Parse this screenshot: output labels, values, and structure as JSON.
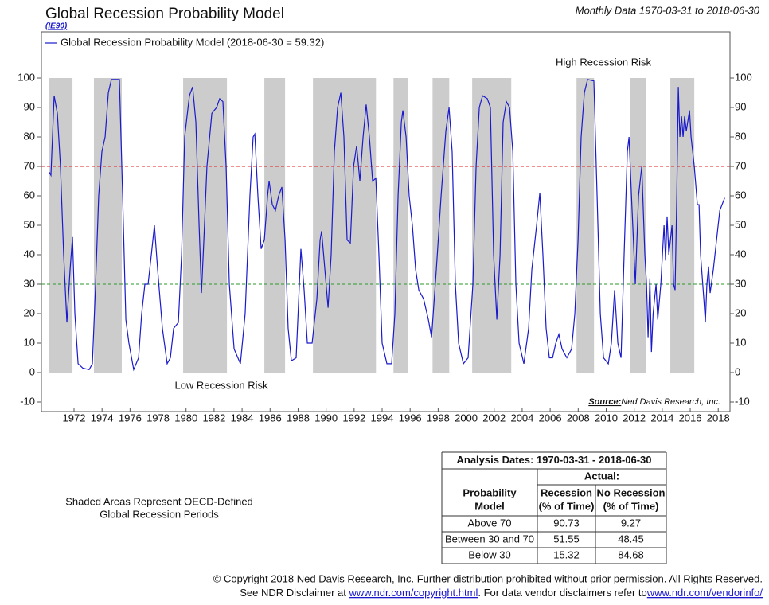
{
  "header": {
    "title": "Global Recession Probability Model",
    "code": "(IE90)",
    "date_range": "Monthly Data 1970-03-31 to 2018-06-30"
  },
  "chart_data": {
    "type": "line",
    "x": [
      1970.24,
      1970.35,
      1970.58,
      1970.81,
      1971.03,
      1971.26,
      1971.49,
      1971.72,
      1971.89,
      1972.06,
      1972.29,
      1972.63,
      1973.08,
      1973.31,
      1973.54,
      1973.76,
      1973.99,
      1974.22,
      1974.45,
      1974.67,
      1975.24,
      1975.47,
      1975.7,
      1975.92,
      1976.26,
      1976.61,
      1976.83,
      1977.06,
      1977.29,
      1977.52,
      1977.74,
      1977.97,
      1978.31,
      1978.65,
      1978.88,
      1979.11,
      1979.45,
      1979.68,
      1979.9,
      1980.24,
      1980.47,
      1980.7,
      1980.93,
      1981.1,
      1981.27,
      1981.49,
      1981.84,
      1982.18,
      1982.4,
      1982.63,
      1982.86,
      1983.09,
      1983.43,
      1983.88,
      1984.22,
      1984.56,
      1984.79,
      1984.91,
      1985.13,
      1985.36,
      1985.59,
      1985.82,
      1985.93,
      1986.16,
      1986.38,
      1986.61,
      1986.84,
      1987.07,
      1987.29,
      1987.52,
      1987.86,
      1988.09,
      1988.2,
      1988.43,
      1988.66,
      1989.0,
      1989.34,
      1989.57,
      1989.68,
      1989.91,
      1990.14,
      1990.36,
      1990.59,
      1990.82,
      1991.05,
      1991.27,
      1991.5,
      1991.73,
      1991.96,
      1992.18,
      1992.41,
      1992.64,
      1992.86,
      1993.09,
      1993.32,
      1993.55,
      1993.77,
      1994.0,
      1994.34,
      1994.68,
      1994.91,
      1995.14,
      1995.37,
      1995.48,
      1995.71,
      1995.93,
      1996.16,
      1996.39,
      1996.62,
      1996.96,
      1997.3,
      1997.53,
      1997.87,
      1998.21,
      1998.55,
      1998.78,
      1999.0,
      1999.23,
      1999.46,
      1999.8,
      2000.14,
      2000.48,
      2000.71,
      2000.94,
      2001.17,
      2001.51,
      2001.73,
      2001.96,
      2002.19,
      2002.42,
      2002.64,
      2002.87,
      2003.1,
      2003.33,
      2003.55,
      2003.78,
      2004.12,
      2004.46,
      2004.69,
      2005.03,
      2005.26,
      2005.48,
      2005.71,
      2005.94,
      2006.17,
      2006.4,
      2006.62,
      2006.85,
      2007.19,
      2007.53,
      2007.76,
      2007.99,
      2008.21,
      2008.44,
      2008.67,
      2009.12,
      2009.35,
      2009.58,
      2009.81,
      2010.15,
      2010.37,
      2010.6,
      2010.83,
      2011.06,
      2011.28,
      2011.51,
      2011.63,
      2011.85,
      2012.08,
      2012.31,
      2012.54,
      2012.76,
      2012.88,
      2012.99,
      2013.12,
      2013.23,
      2013.35,
      2013.56,
      2013.68,
      2013.9,
      2014.13,
      2014.24,
      2014.35,
      2014.47,
      2014.7,
      2014.81,
      2014.92,
      2015.04,
      2015.15,
      2015.26,
      2015.38,
      2015.49,
      2015.6,
      2015.72,
      2015.95,
      2016.06,
      2016.29,
      2016.51,
      2016.63,
      2016.74,
      2016.97,
      2017.08,
      2017.19,
      2017.31,
      2017.42,
      2017.65,
      2017.88,
      2018.11,
      2018.46
    ],
    "series": [
      {
        "name": "Global Recession Probability Model (2018-06-30 = 59.32)",
        "color": "#1a1acc",
        "values": [
          68,
          67,
          94,
          88,
          70,
          40,
          17,
          35,
          46,
          20,
          3,
          1.5,
          1,
          3,
          30,
          60,
          75,
          80,
          95,
          99.5,
          99.5,
          60,
          18,
          10,
          1,
          5,
          20,
          30,
          30,
          40,
          50,
          35,
          15,
          3,
          5,
          15,
          17,
          40,
          80,
          94,
          97,
          85,
          50,
          27,
          45,
          70,
          88,
          90,
          93,
          92,
          70,
          30,
          8,
          3,
          20,
          60,
          80,
          81,
          60,
          42,
          45,
          60,
          65,
          57,
          55,
          60,
          63,
          45,
          15,
          4,
          5,
          30,
          42,
          28,
          10,
          10,
          25,
          45,
          48,
          35,
          22,
          40,
          75,
          90,
          95,
          80,
          45,
          44,
          70,
          77,
          65,
          80,
          91,
          80,
          65,
          66,
          40,
          10,
          3,
          3,
          20,
          60,
          85,
          89,
          80,
          60,
          50,
          35,
          28,
          25,
          18,
          12,
          35,
          60,
          82,
          90,
          75,
          30,
          10,
          3,
          5,
          30,
          70,
          90,
          94,
          93,
          90,
          40,
          18,
          40,
          85,
          92,
          90,
          75,
          30,
          10,
          3,
          15,
          35,
          50,
          61,
          40,
          15,
          5,
          5,
          10,
          13,
          8,
          5,
          8,
          20,
          45,
          80,
          95,
          99.5,
          99,
          60,
          20,
          5,
          3,
          10,
          28,
          10,
          5,
          40,
          75,
          80,
          55,
          30,
          60,
          70,
          40,
          30,
          12,
          32,
          7,
          20,
          30,
          18,
          30,
          50,
          38,
          53,
          40,
          50,
          30,
          28,
          60,
          97,
          80,
          87,
          80,
          87,
          82,
          89,
          80,
          70,
          57,
          57,
          40,
          25,
          17,
          30,
          36,
          27,
          35,
          45,
          55,
          59.32
        ]
      }
    ],
    "xlim": [
      1969.67,
      2018.84
    ],
    "ylim": [
      -13.24,
      115.68
    ],
    "xticks": [
      1972,
      1974,
      1976,
      1978,
      1980,
      1982,
      1984,
      1986,
      1988,
      1990,
      1992,
      1994,
      1996,
      1998,
      2000,
      2002,
      2004,
      2006,
      2008,
      2010,
      2012,
      2014,
      2016,
      2018
    ],
    "yticks": [
      -10,
      0,
      10,
      20,
      30,
      40,
      50,
      60,
      70,
      80,
      90,
      100
    ],
    "shaded_regions": [
      [
        1970.24,
        1971.89
      ],
      [
        1973.42,
        1975.41
      ],
      [
        1979.79,
        1982.92
      ],
      [
        1985.59,
        1987.07
      ],
      [
        1989.06,
        1993.56
      ],
      [
        1994.81,
        1995.84
      ],
      [
        1997.6,
        1998.79
      ],
      [
        2000.43,
        2003.22
      ],
      [
        2007.88,
        2009.13
      ],
      [
        2011.68,
        2012.82
      ],
      [
        2014.58,
        2016.29
      ]
    ],
    "shaded_ylim": [
      0,
      100
    ],
    "shade_color": "#cccccc",
    "reference_lines": [
      {
        "value": 70,
        "color": "#e02020"
      },
      {
        "value": 30,
        "color": "#2a9a2a"
      }
    ],
    "annotations": [
      {
        "text": "High Recession Risk",
        "color": "#e02020"
      },
      {
        "text": "Low Recession Risk",
        "color": "#2a9a2a"
      }
    ],
    "source_label": "Source:",
    "source": "Ned Davis Research, Inc."
  },
  "note": [
    "Shaded Areas Represent OECD-Defined",
    "Global Recession Periods"
  ],
  "table": {
    "title": "Analysis Dates: 1970-03-31 - 2018-06-30",
    "group": "Actual:",
    "header": [
      [
        "Probability",
        "Model"
      ],
      [
        "Recession",
        "(% of Time)"
      ],
      [
        "No Recession",
        "(% of Time)"
      ]
    ],
    "rows": [
      [
        "Above 70",
        90.73,
        9.27
      ],
      [
        "Between 30 and 70",
        51.55,
        48.45
      ],
      [
        "Below 30",
        15.32,
        84.68
      ]
    ]
  },
  "footer": {
    "copyright": "© Copyright 2018 Ned Davis Research, Inc. Further distribution prohibited without prior permission. All Rights Reserved.",
    "line2": [
      "See NDR Disclaimer at ",
      "www.ndr.com/copyright.html",
      ". For data vendor disclaimers refer to",
      "www.ndr.com/vendorinfo/"
    ]
  }
}
